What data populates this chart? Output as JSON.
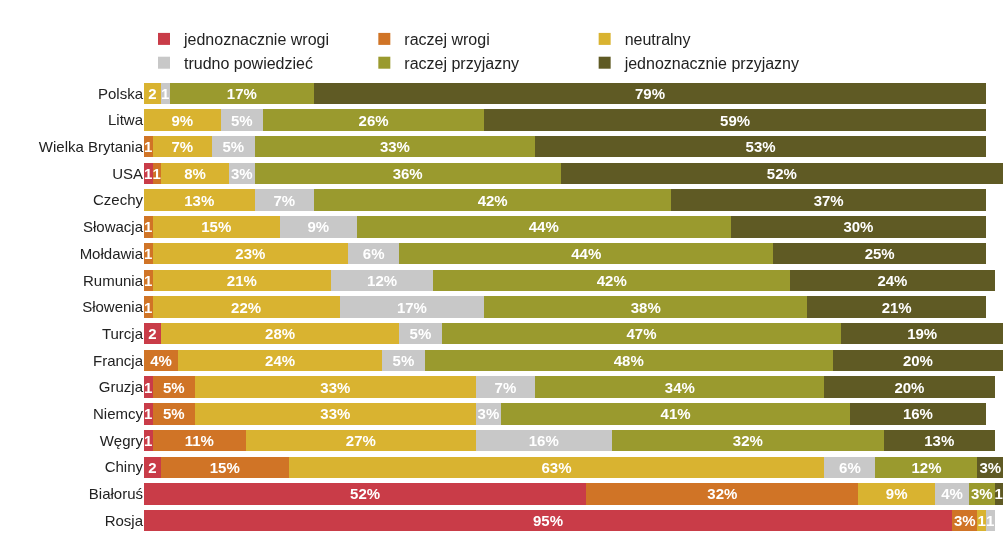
{
  "chart_data": {
    "type": "bar",
    "orientation": "horizontal",
    "stacked": true,
    "legend": "top",
    "tick_labels": "y",
    "xlim": [
      0,
      101
    ],
    "categories": [
      "Polska",
      "Litwa",
      "Wielka Brytania",
      "USA",
      "Czechy",
      "Słowacja",
      "Mołdawia",
      "Rumunia",
      "Słowenia",
      "Turcja",
      "Francja",
      "Gruzja",
      "Niemcy",
      "Węgry",
      "Chiny",
      "Białoruś",
      "Rosja"
    ],
    "series": [
      {
        "name": "jednoznacznie wrogi",
        "color": "#c93c48",
        "values": [
          null,
          null,
          null,
          1,
          null,
          null,
          null,
          null,
          null,
          2,
          null,
          1,
          1,
          1,
          2,
          52,
          95
        ],
        "value_labels": [
          null,
          null,
          null,
          "1",
          null,
          null,
          null,
          null,
          null,
          "2",
          null,
          "1",
          "1",
          "1",
          "2",
          "52%",
          "95%"
        ]
      },
      {
        "name": "raczej wrogi",
        "color": "#d07426",
        "values": [
          null,
          null,
          1,
          1,
          null,
          1,
          1,
          1,
          1,
          null,
          4,
          5,
          5,
          11,
          15,
          32,
          3
        ],
        "value_labels": [
          null,
          null,
          "1",
          "1",
          null,
          "1",
          "1",
          "1",
          "1",
          null,
          "4%",
          "5%",
          "5%",
          "11%",
          "15%",
          "32%",
          "3%"
        ]
      },
      {
        "name": "neutralny",
        "color": "#d9b330",
        "values": [
          2,
          9,
          7,
          8,
          13,
          15,
          23,
          21,
          22,
          28,
          24,
          33,
          33,
          27,
          63,
          9,
          1
        ],
        "value_labels": [
          "2",
          "9%",
          "7%",
          "8%",
          "13%",
          "15%",
          "23%",
          "21%",
          "22%",
          "28%",
          "24%",
          "33%",
          "33%",
          "27%",
          "63%",
          "9%",
          "1"
        ]
      },
      {
        "name": "trudno powiedzieć",
        "color": "#c8c8c8",
        "values": [
          1,
          5,
          5,
          3,
          7,
          9,
          6,
          12,
          17,
          5,
          5,
          7,
          3,
          16,
          6,
          4,
          1
        ],
        "value_labels": [
          "1",
          "5%",
          "5%",
          "3%",
          "7%",
          "9%",
          "6%",
          "12%",
          "17%",
          "5%",
          "5%",
          "7%",
          "3%",
          "16%",
          "6%",
          "4%",
          "1"
        ]
      },
      {
        "name": "raczej przyjazny",
        "color": "#9a9a2e",
        "values": [
          17,
          26,
          33,
          36,
          42,
          44,
          44,
          42,
          38,
          47,
          48,
          34,
          41,
          32,
          12,
          3,
          null
        ],
        "value_labels": [
          "17%",
          "26%",
          "33%",
          "36%",
          "42%",
          "44%",
          "44%",
          "42%",
          "38%",
          "47%",
          "48%",
          "34%",
          "41%",
          "32%",
          "12%",
          "3%",
          null
        ]
      },
      {
        "name": "jednoznacznie przyjazny",
        "color": "#5f5a24",
        "values": [
          79,
          59,
          53,
          52,
          37,
          30,
          25,
          24,
          21,
          19,
          20,
          20,
          16,
          13,
          3,
          1,
          null
        ],
        "value_labels": [
          "79%",
          "59%",
          "53%",
          "52%",
          "37%",
          "30%",
          "25%",
          "24%",
          "21%",
          "19%",
          "20%",
          "20%",
          "16%",
          "13%",
          "3%",
          "1",
          null
        ]
      }
    ]
  }
}
